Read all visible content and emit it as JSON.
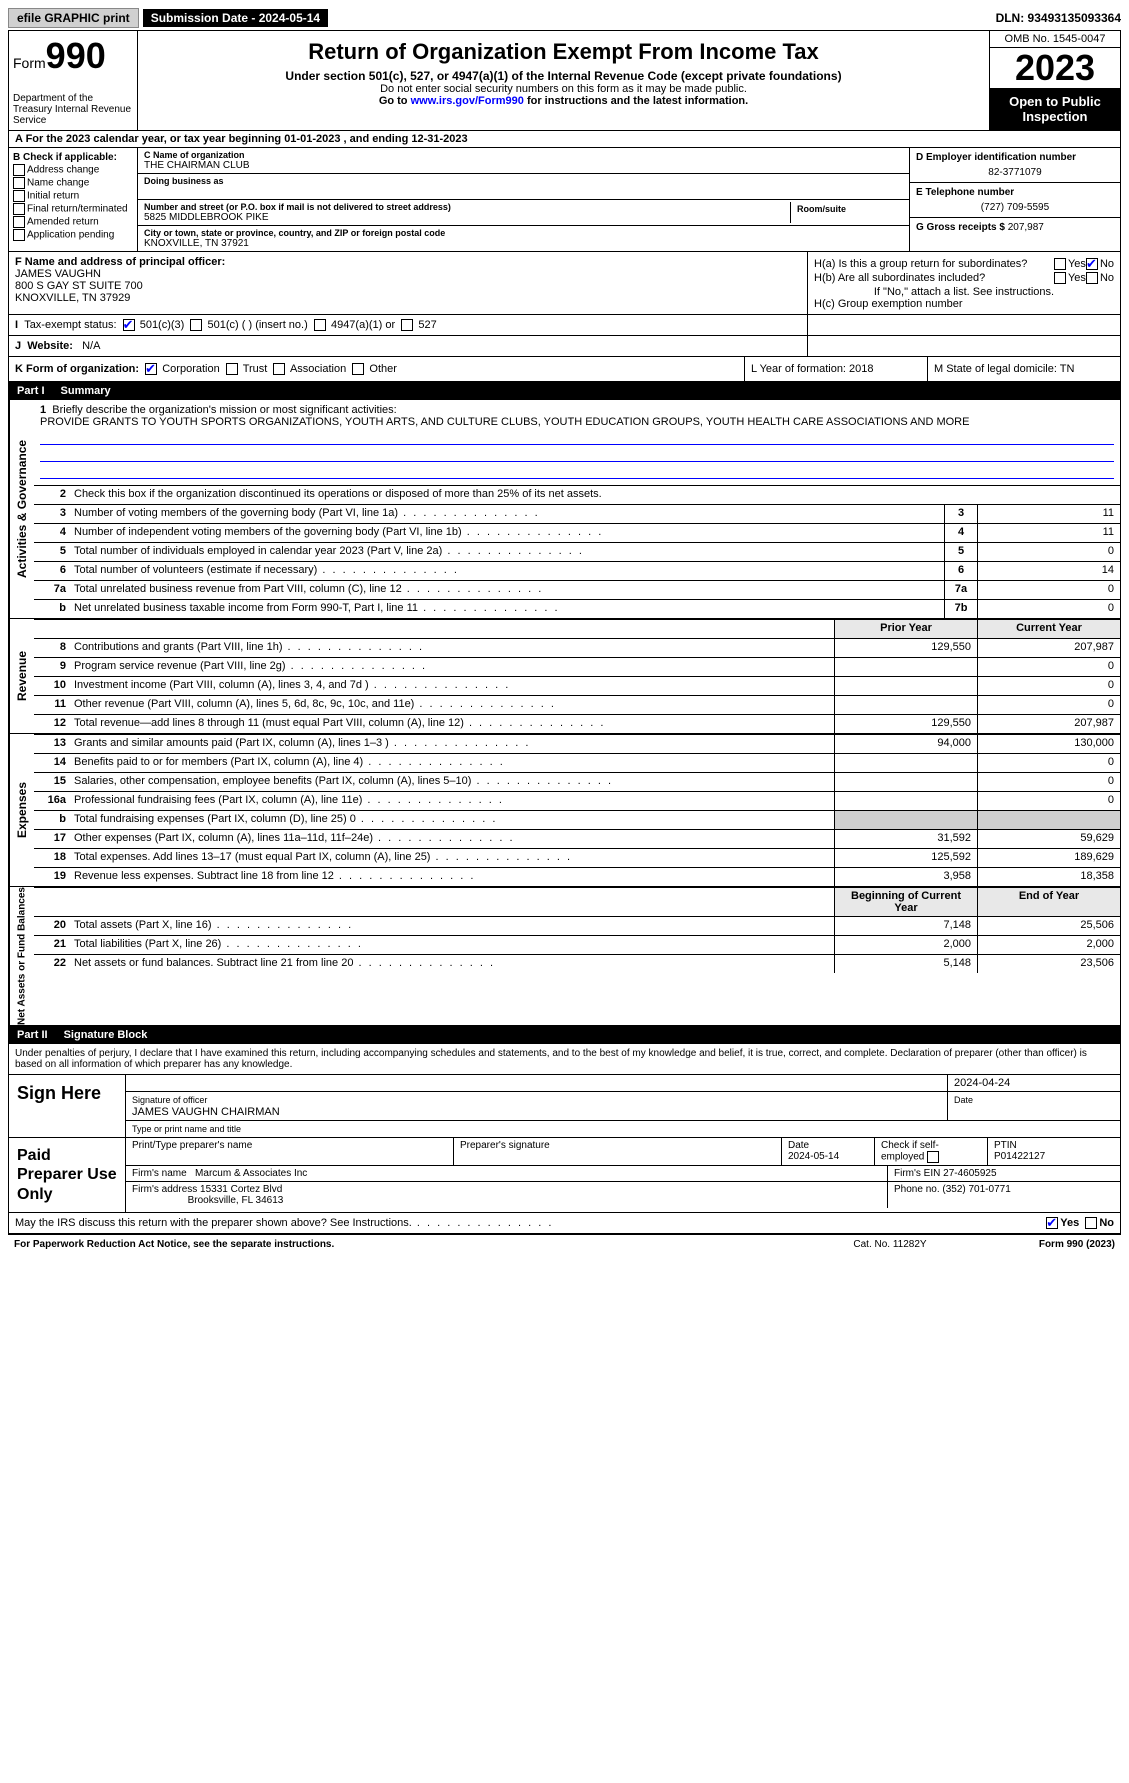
{
  "topbar": {
    "efile": "efile GRAPHIC print",
    "submission": "Submission Date - 2024-05-14",
    "dln": "DLN: 93493135093364"
  },
  "header": {
    "form_label": "Form",
    "form_num": "990",
    "dept": "Department of the Treasury Internal Revenue Service",
    "title": "Return of Organization Exempt From Income Tax",
    "sub1": "Under section 501(c), 527, or 4947(a)(1) of the Internal Revenue Code (except private foundations)",
    "sub2": "Do not enter social security numbers on this form as it may be made public.",
    "sub3_pre": "Go to ",
    "sub3_link": "www.irs.gov/Form990",
    "sub3_post": " for instructions and the latest information.",
    "omb": "OMB No. 1545-0047",
    "year": "2023",
    "open": "Open to Public Inspection"
  },
  "row_a": "A For the 2023 calendar year, or tax year beginning 01-01-2023  , and ending 12-31-2023",
  "b": {
    "label": "B Check if applicable:",
    "opts": [
      "Address change",
      "Name change",
      "Initial return",
      "Final return/terminated",
      "Amended return",
      "Application pending"
    ]
  },
  "c": {
    "name_lbl": "C Name of organization",
    "name": "THE CHAIRMAN CLUB",
    "dba_lbl": "Doing business as",
    "addr_lbl": "Number and street (or P.O. box if mail is not delivered to street address)",
    "addr": "5825 MIDDLEBROOK PIKE",
    "room_lbl": "Room/suite",
    "city_lbl": "City or town, state or province, country, and ZIP or foreign postal code",
    "city": "KNOXVILLE, TN  37921"
  },
  "d": {
    "ein_lbl": "D Employer identification number",
    "ein": "82-3771079",
    "tel_lbl": "E Telephone number",
    "tel": "(727) 709-5595",
    "gross_lbl": "G Gross receipts $",
    "gross": "207,987"
  },
  "f": {
    "lbl": "F  Name and address of principal officer:",
    "name": "JAMES VAUGHN",
    "addr1": "800 S GAY ST SUITE 700",
    "addr2": "KNOXVILLE, TN  37929"
  },
  "h": {
    "a": "H(a)  Is this a group return for subordinates?",
    "b": "H(b)  Are all subordinates included?",
    "note": "If \"No,\" attach a list. See instructions.",
    "c": "H(c)  Group exemption number  "
  },
  "i": {
    "lbl": "Tax-exempt status:",
    "o1": "501(c)(3)",
    "o2": "501(c) (  ) (insert no.)",
    "o3": "4947(a)(1) or",
    "o4": "527"
  },
  "j": {
    "lbl": "Website: ",
    "val": "N/A"
  },
  "k": {
    "lbl": "K Form of organization:",
    "o1": "Corporation",
    "o2": "Trust",
    "o3": "Association",
    "o4": "Other"
  },
  "l": "L Year of formation: 2018",
  "m": "M State of legal domicile: TN",
  "parts": {
    "p1": "Part I",
    "p1t": "Summary",
    "p2": "Part II",
    "p2t": "Signature Block"
  },
  "mission": {
    "lbl": "Briefly describe the organization's mission or most significant activities:",
    "text": "PROVIDE GRANTS TO YOUTH SPORTS ORGANIZATIONS, YOUTH ARTS, AND CULTURE CLUBS, YOUTH EDUCATION GROUPS, YOUTH HEALTH CARE ASSOCIATIONS AND MORE"
  },
  "line2": "Check this box  if the organization discontinued its operations or disposed of more than 25% of its net assets.",
  "vtabs": {
    "ag": "Activities & Governance",
    "rev": "Revenue",
    "exp": "Expenses",
    "na": "Net Assets or Fund Balances"
  },
  "rows_ag": [
    {
      "n": "3",
      "d": "Number of voting members of the governing body (Part VI, line 1a)",
      "box": "3",
      "v": "11"
    },
    {
      "n": "4",
      "d": "Number of independent voting members of the governing body (Part VI, line 1b)",
      "box": "4",
      "v": "11"
    },
    {
      "n": "5",
      "d": "Total number of individuals employed in calendar year 2023 (Part V, line 2a)",
      "box": "5",
      "v": "0"
    },
    {
      "n": "6",
      "d": "Total number of volunteers (estimate if necessary)",
      "box": "6",
      "v": "14"
    },
    {
      "n": "7a",
      "d": "Total unrelated business revenue from Part VIII, column (C), line 12",
      "box": "7a",
      "v": "0"
    },
    {
      "n": "b",
      "d": "Net unrelated business taxable income from Form 990-T, Part I, line 11",
      "box": "7b",
      "v": "0"
    }
  ],
  "col_hdr": {
    "prior": "Prior Year",
    "current": "Current Year",
    "begin": "Beginning of Current Year",
    "end": "End of Year"
  },
  "rows_rev": [
    {
      "n": "8",
      "d": "Contributions and grants (Part VIII, line 1h)",
      "p": "129,550",
      "c": "207,987"
    },
    {
      "n": "9",
      "d": "Program service revenue (Part VIII, line 2g)",
      "p": "",
      "c": "0"
    },
    {
      "n": "10",
      "d": "Investment income (Part VIII, column (A), lines 3, 4, and 7d )",
      "p": "",
      "c": "0"
    },
    {
      "n": "11",
      "d": "Other revenue (Part VIII, column (A), lines 5, 6d, 8c, 9c, 10c, and 11e)",
      "p": "",
      "c": "0"
    },
    {
      "n": "12",
      "d": "Total revenue—add lines 8 through 11 (must equal Part VIII, column (A), line 12)",
      "p": "129,550",
      "c": "207,987"
    }
  ],
  "rows_exp": [
    {
      "n": "13",
      "d": "Grants and similar amounts paid (Part IX, column (A), lines 1–3 )",
      "p": "94,000",
      "c": "130,000"
    },
    {
      "n": "14",
      "d": "Benefits paid to or for members (Part IX, column (A), line 4)",
      "p": "",
      "c": "0"
    },
    {
      "n": "15",
      "d": "Salaries, other compensation, employee benefits (Part IX, column (A), lines 5–10)",
      "p": "",
      "c": "0"
    },
    {
      "n": "16a",
      "d": "Professional fundraising fees (Part IX, column (A), line 11e)",
      "p": "",
      "c": "0"
    },
    {
      "n": "b",
      "d": "Total fundraising expenses (Part IX, column (D), line 25) 0",
      "p": "grey",
      "c": "grey"
    },
    {
      "n": "17",
      "d": "Other expenses (Part IX, column (A), lines 11a–11d, 11f–24e)",
      "p": "31,592",
      "c": "59,629"
    },
    {
      "n": "18",
      "d": "Total expenses. Add lines 13–17 (must equal Part IX, column (A), line 25)",
      "p": "125,592",
      "c": "189,629"
    },
    {
      "n": "19",
      "d": "Revenue less expenses. Subtract line 18 from line 12",
      "p": "3,958",
      "c": "18,358"
    }
  ],
  "rows_na": [
    {
      "n": "20",
      "d": "Total assets (Part X, line 16)",
      "p": "7,148",
      "c": "25,506"
    },
    {
      "n": "21",
      "d": "Total liabilities (Part X, line 26)",
      "p": "2,000",
      "c": "2,000"
    },
    {
      "n": "22",
      "d": "Net assets or fund balances. Subtract line 21 from line 20",
      "p": "5,148",
      "c": "23,506"
    }
  ],
  "sig_intro": "Under penalties of perjury, I declare that I have examined this return, including accompanying schedules and statements, and to the best of my knowledge and belief, it is true, correct, and complete. Declaration of preparer (other than officer) is based on all information of which preparer has any knowledge.",
  "sign": {
    "label": "Sign Here",
    "sig_lbl": "Signature of officer",
    "date_lbl": "Date",
    "date": "2024-04-24",
    "name": "JAMES VAUGHN  CHAIRMAN",
    "type_lbl": "Type or print name and title"
  },
  "prep": {
    "label": "Paid Preparer Use Only",
    "name_lbl": "Print/Type preparer's name",
    "sig_lbl": "Preparer's signature",
    "date_lbl": "Date",
    "date": "2024-05-14",
    "check_lbl": "Check  if self-employed",
    "ptin_lbl": "PTIN",
    "ptin": "P01422127",
    "firm_name_lbl": "Firm's name  ",
    "firm_name": "Marcum & Associates Inc",
    "firm_ein_lbl": "Firm's EIN  ",
    "firm_ein": "27-4605925",
    "firm_addr_lbl": "Firm's address ",
    "firm_addr1": "15331 Cortez Blvd",
    "firm_addr2": "Brooksville, FL  34613",
    "phone_lbl": "Phone no. ",
    "phone": "(352) 701-0771"
  },
  "discuss": "May the IRS discuss this return with the preparer shown above? See Instructions.",
  "yes": "Yes",
  "no": "No",
  "footer": {
    "l": "For Paperwork Reduction Act Notice, see the separate instructions.",
    "m": "Cat. No. 11282Y",
    "r": "Form 990 (2023)"
  }
}
